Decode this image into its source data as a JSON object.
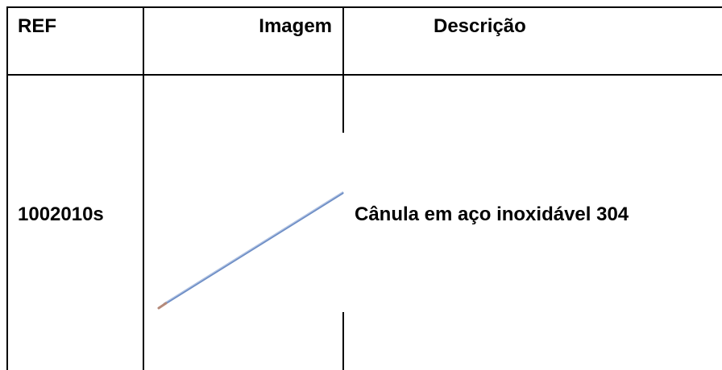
{
  "table": {
    "header": [
      "REF",
      "Imagem",
      "Descrição"
    ],
    "rows": [
      [
        "1002010s",
        "Cânula em aço inoxidável 304"
      ]
    ]
  }
}
